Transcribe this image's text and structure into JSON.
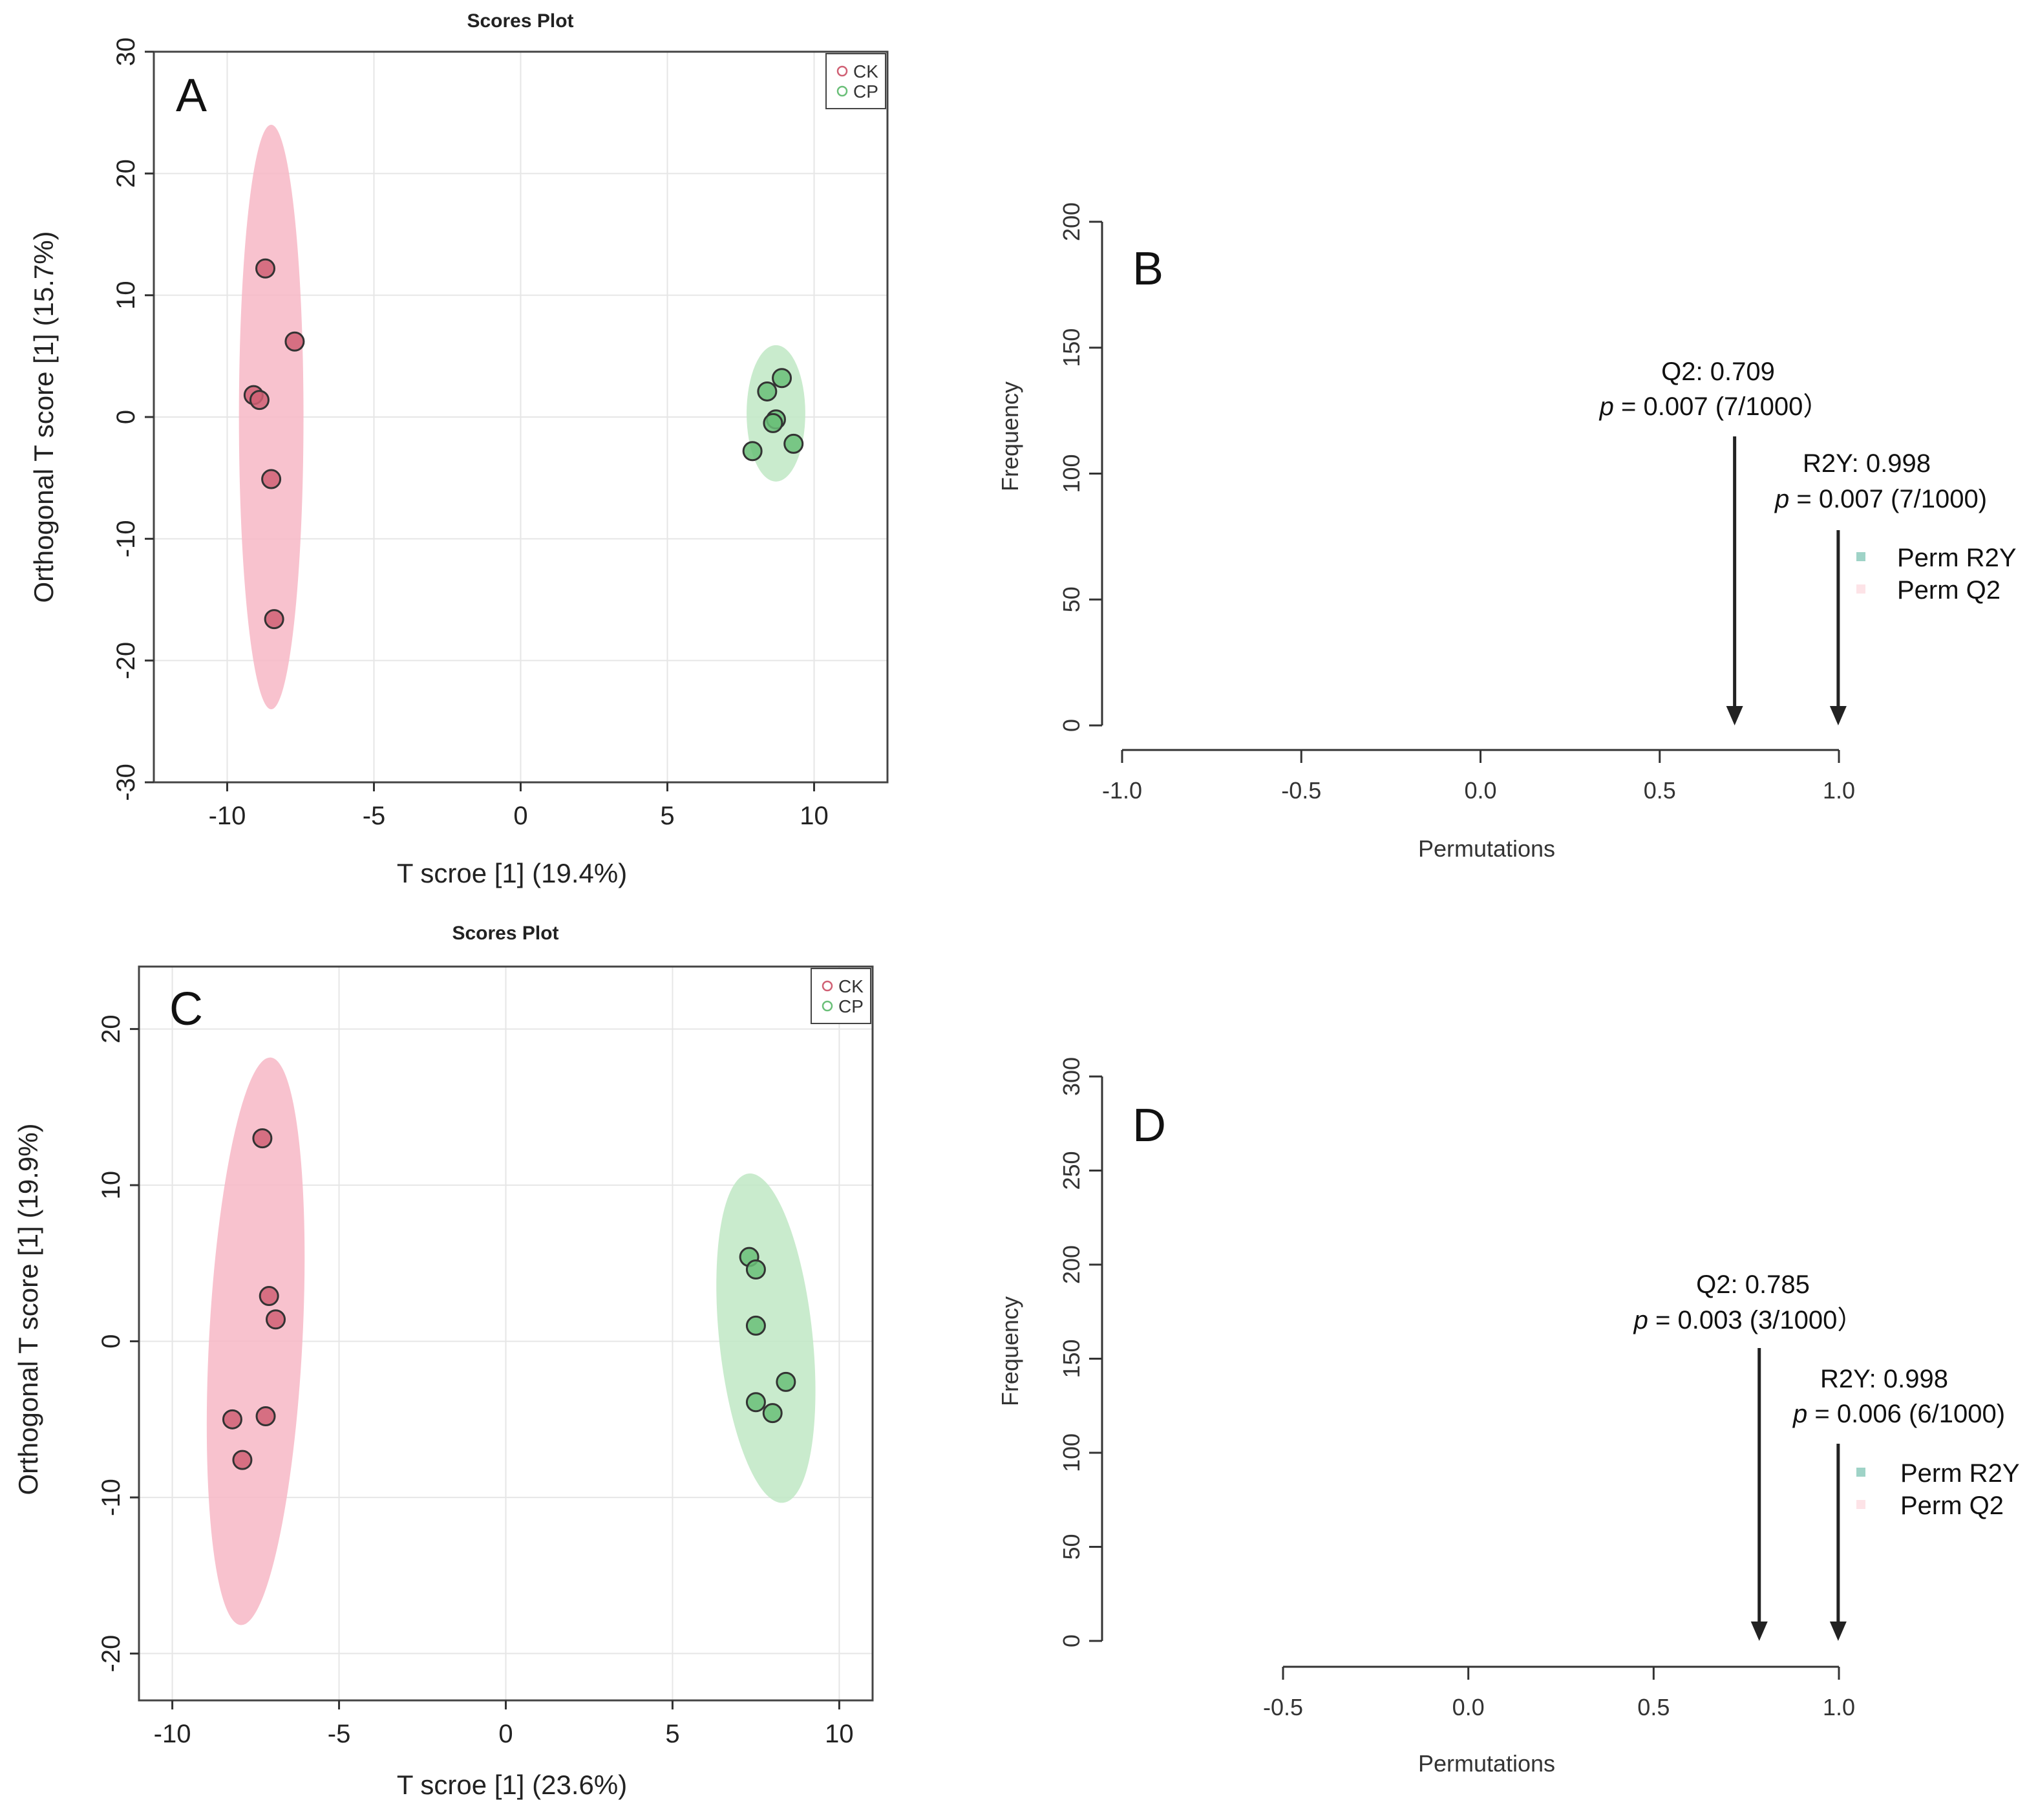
{
  "chart_data": [
    {
      "panel": "A",
      "type": "scatter",
      "title": "Scores Plot",
      "xlabel": "T scroe [1] (19.4%)",
      "ylabel": "Orthogonal T score [1] (15.7%)",
      "xlim": [
        -12.5,
        12.5
      ],
      "ylim": [
        -30,
        30
      ],
      "xticks": [
        -10,
        -5,
        0,
        5,
        10
      ],
      "yticks": [
        -30,
        -20,
        -10,
        0,
        10,
        20,
        30
      ],
      "legend": [
        "CK",
        "CP"
      ],
      "series": [
        {
          "name": "CK",
          "color": "#d06074",
          "ellipse_color": "#f7b7c6",
          "points": [
            [
              -8.7,
              12.2
            ],
            [
              -7.7,
              6.2
            ],
            [
              -9.1,
              1.8
            ],
            [
              -8.9,
              1.4
            ],
            [
              -8.5,
              -5.1
            ],
            [
              -8.4,
              -16.6
            ]
          ],
          "ellipse": {
            "cx": -8.5,
            "cy": 0,
            "rx": 1.1,
            "ry": 24
          }
        },
        {
          "name": "CP",
          "color": "#6abf78",
          "ellipse_color": "#bfe8c4",
          "points": [
            [
              8.9,
              3.2
            ],
            [
              8.4,
              2.1
            ],
            [
              8.7,
              -0.2
            ],
            [
              8.6,
              -0.5
            ],
            [
              7.9,
              -2.8
            ],
            [
              9.3,
              -2.2
            ]
          ],
          "ellipse": {
            "cx": 8.7,
            "cy": 0.3,
            "rx": 1.0,
            "ry": 5.6
          }
        }
      ]
    },
    {
      "panel": "B",
      "type": "histogram",
      "xlabel": "Permutations",
      "ylabel": "Frequency",
      "xlim": [
        -1.0,
        1.0
      ],
      "ylim": [
        0,
        200
      ],
      "xticks": [
        "-1.0",
        "-0.5",
        "0.0",
        "0.5",
        "1.0"
      ],
      "yticks": [
        0,
        50,
        100,
        150,
        200
      ],
      "legend": [
        "Perm R2Y",
        "Perm Q2"
      ],
      "annotations": [
        {
          "label": "Q2: 0.709",
          "p_prefix": "p",
          "p_rest": " = 0.007 (7/1000）",
          "x": 0.709
        },
        {
          "label": "R2Y: 0.998",
          "p_prefix": "p",
          "p_rest": " = 0.007 (7/1000)",
          "x": 0.998
        }
      ]
    },
    {
      "panel": "C",
      "type": "scatter",
      "title": "Scores Plot",
      "xlabel": "T scroe [1] (23.6%)",
      "ylabel": "Orthogonal T score [1] (19.9%)",
      "xlim": [
        -11,
        11
      ],
      "ylim": [
        -23,
        24
      ],
      "xticks": [
        -10,
        -5,
        0,
        5,
        10
      ],
      "yticks": [
        -20,
        -10,
        0,
        10,
        20
      ],
      "legend": [
        "CK",
        "CP"
      ],
      "series": [
        {
          "name": "CK",
          "color": "#d06074",
          "ellipse_color": "#f7b7c6",
          "points": [
            [
              -7.3,
              13.0
            ],
            [
              -7.1,
              2.9
            ],
            [
              -6.9,
              1.4
            ],
            [
              -8.2,
              -5.0
            ],
            [
              -7.2,
              -4.8
            ],
            [
              -7.9,
              -7.6
            ]
          ],
          "ellipse": {
            "cx": -7.5,
            "cy": 0,
            "rx": 1.4,
            "ry": 18.2
          }
        },
        {
          "name": "CP",
          "color": "#6abf78",
          "ellipse_color": "#bfe8c4",
          "points": [
            [
              7.3,
              5.4
            ],
            [
              7.5,
              4.6
            ],
            [
              7.5,
              1.0
            ],
            [
              8.4,
              -2.6
            ],
            [
              7.5,
              -3.9
            ],
            [
              8.0,
              -4.6
            ]
          ],
          "ellipse": {
            "cx": 7.8,
            "cy": 0.2,
            "rx": 1.4,
            "ry": 10.6
          }
        }
      ]
    },
    {
      "panel": "D",
      "type": "histogram",
      "xlabel": "Permutations",
      "ylabel": "Frequency",
      "xlim": [
        -0.5,
        1.0
      ],
      "ylim": [
        0,
        300
      ],
      "xticks": [
        "-0.5",
        "0.0",
        "0.5",
        "1.0"
      ],
      "yticks": [
        0,
        50,
        100,
        150,
        200,
        250,
        300
      ],
      "legend": [
        "Perm R2Y",
        "Perm Q2"
      ],
      "annotations": [
        {
          "label": "Q2: 0.785",
          "p_prefix": "p",
          "p_rest": " = 0.003 (3/1000）",
          "x": 0.785
        },
        {
          "label": "R2Y: 0.998",
          "p_prefix": "p",
          "p_rest": " = 0.006 (6/1000)",
          "x": 0.998
        }
      ]
    }
  ]
}
